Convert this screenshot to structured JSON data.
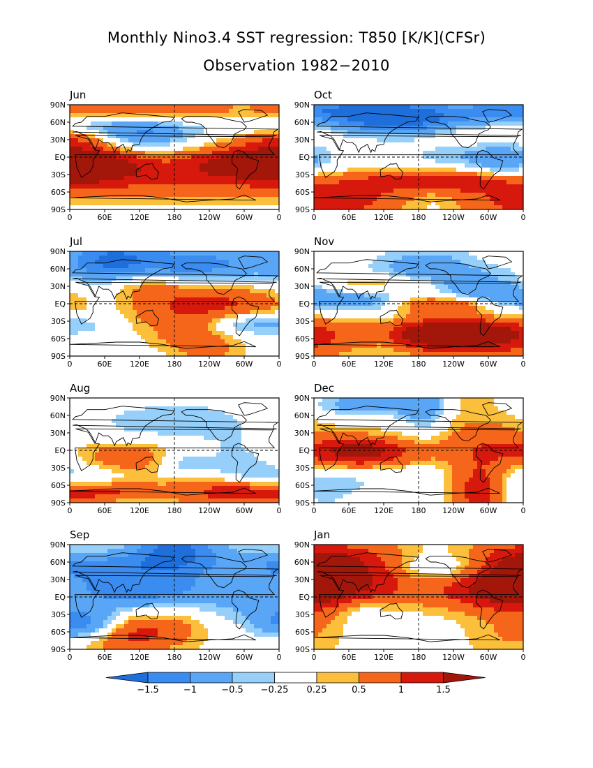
{
  "title": "Monthly Nino3.4 SST regression: T850 [K/K](CFSr)",
  "subtitle": "Observation 1982−2010",
  "lat_labels": [
    "90N",
    "60N",
    "30N",
    "EQ",
    "30S",
    "60S",
    "90S"
  ],
  "lon_labels": [
    "0",
    "60E",
    "120E",
    "180",
    "120W",
    "60W",
    "0"
  ],
  "panels": [
    {
      "month": "Jun"
    },
    {
      "month": "Oct"
    },
    {
      "month": "Jul"
    },
    {
      "month": "Nov"
    },
    {
      "month": "Aug"
    },
    {
      "month": "Dec"
    },
    {
      "month": "Sep"
    },
    {
      "month": "Jan"
    }
  ],
  "colorbar": {
    "labels": [
      "−1.5",
      "−1",
      "−0.5",
      "−0.25",
      "0.25",
      "0.5",
      "1",
      "1.5"
    ],
    "colors": [
      "#1e6fdc",
      "#3a8cf0",
      "#5aa6f6",
      "#96d0fa",
      "#ffffff",
      "#fbbf3c",
      "#f5661a",
      "#d7190d",
      "#a3170b"
    ]
  }
}
